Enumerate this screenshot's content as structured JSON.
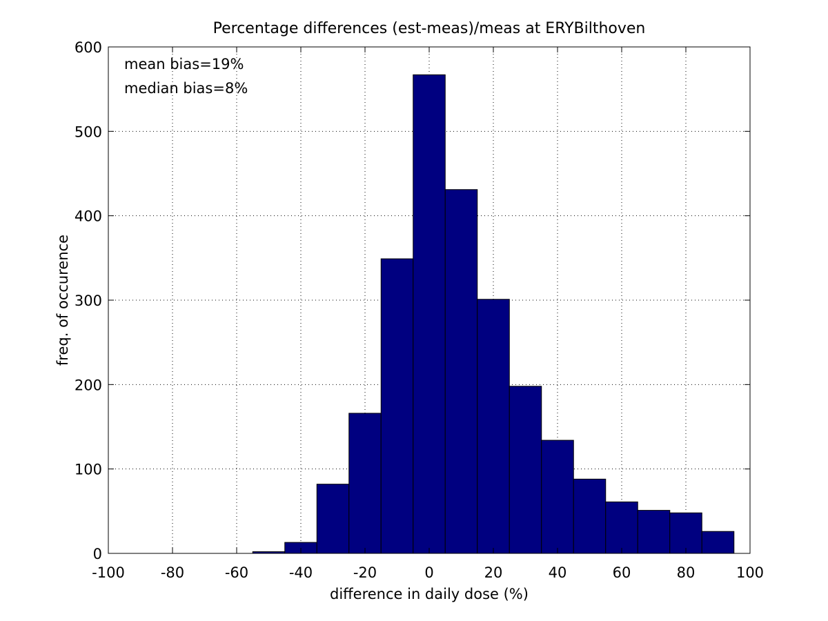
{
  "chart_data": {
    "type": "bar",
    "title": "Percentage differences (est-meas)/meas at ERYBilthoven",
    "xlabel": "difference in daily dose (%)",
    "ylabel": "freq. of occurence",
    "xlim": [
      -100,
      100
    ],
    "ylim": [
      0,
      600
    ],
    "xticks": [
      -100,
      -80,
      -60,
      -40,
      -20,
      0,
      20,
      40,
      60,
      80,
      100
    ],
    "yticks": [
      0,
      100,
      200,
      300,
      400,
      500,
      600
    ],
    "xtick_labels": [
      "-100",
      "-80",
      "-60",
      "-40",
      "-20",
      "0",
      "20",
      "40",
      "60",
      "80",
      "100"
    ],
    "ytick_labels": [
      "0",
      "100",
      "200",
      "300",
      "400",
      "500",
      "600"
    ],
    "grid": true,
    "bin_width": 10,
    "bin_centers": [
      -50,
      -40,
      -30,
      -20,
      -10,
      0,
      10,
      20,
      30,
      40,
      50,
      60,
      70,
      80,
      90
    ],
    "values": [
      2,
      13,
      82,
      166,
      349,
      567,
      431,
      301,
      198,
      134,
      88,
      61,
      51,
      48,
      26
    ],
    "bar_color": "#000080",
    "bar_edge_color": "#000000",
    "annotations": [
      "mean bias=19%",
      "median bias=8%"
    ]
  }
}
